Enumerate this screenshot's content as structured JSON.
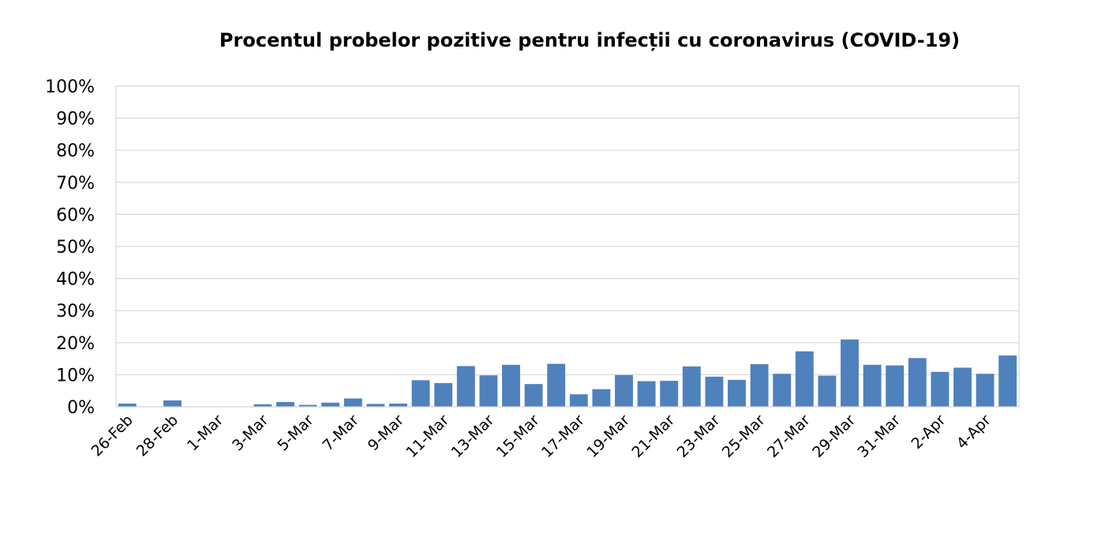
{
  "chart_data": {
    "type": "bar",
    "title": "Procentul probelor pozitive pentru infecții cu coronavirus  (COVID-19)",
    "xlabel": "",
    "ylabel": "",
    "ylim": [
      0,
      100
    ],
    "y_ticks": [
      "0%",
      "10%",
      "20%",
      "30%",
      "40%",
      "50%",
      "60%",
      "70%",
      "80%",
      "90%",
      "100%"
    ],
    "grid": true,
    "legend": "none",
    "bar_color": "#4f81bd",
    "categories": [
      "26-Feb",
      "27-Feb",
      "28-Feb",
      "29-Feb",
      "1-Mar",
      "2-Mar",
      "3-Mar",
      "4-Mar",
      "5-Mar",
      "6-Mar",
      "7-Mar",
      "8-Mar",
      "9-Mar",
      "10-Mar",
      "11-Mar",
      "12-Mar",
      "13-Mar",
      "14-Mar",
      "15-Mar",
      "16-Mar",
      "17-Mar",
      "18-Mar",
      "19-Mar",
      "20-Mar",
      "21-Mar",
      "22-Mar",
      "23-Mar",
      "24-Mar",
      "25-Mar",
      "26-Mar",
      "27-Mar",
      "28-Mar",
      "29-Mar",
      "30-Mar",
      "31-Mar",
      "1-Apr",
      "2-Apr",
      "3-Apr",
      "4-Apr",
      "5-Apr"
    ],
    "shown_tick_labels": [
      "26-Feb",
      "28-Feb",
      "1-Mar",
      "3-Mar",
      "5-Mar",
      "7-Mar",
      "9-Mar",
      "11-Mar",
      "13-Mar",
      "15-Mar",
      "17-Mar",
      "19-Mar",
      "21-Mar",
      "23-Mar",
      "25-Mar",
      "27-Mar",
      "29-Mar",
      "31-Mar",
      "2-Apr",
      "4-Apr"
    ],
    "values": [
      1.0,
      0,
      2.0,
      0,
      0,
      0,
      0.8,
      1.5,
      0.6,
      1.3,
      2.6,
      0.9,
      1.0,
      8.3,
      7.4,
      12.7,
      9.8,
      13.1,
      7.1,
      13.4,
      3.9,
      5.5,
      9.9,
      8.0,
      8.1,
      12.6,
      9.4,
      8.4,
      13.3,
      10.3,
      17.3,
      9.7,
      21.0,
      13.1,
      12.9,
      15.2,
      10.9,
      12.2,
      10.3,
      16.0
    ]
  }
}
